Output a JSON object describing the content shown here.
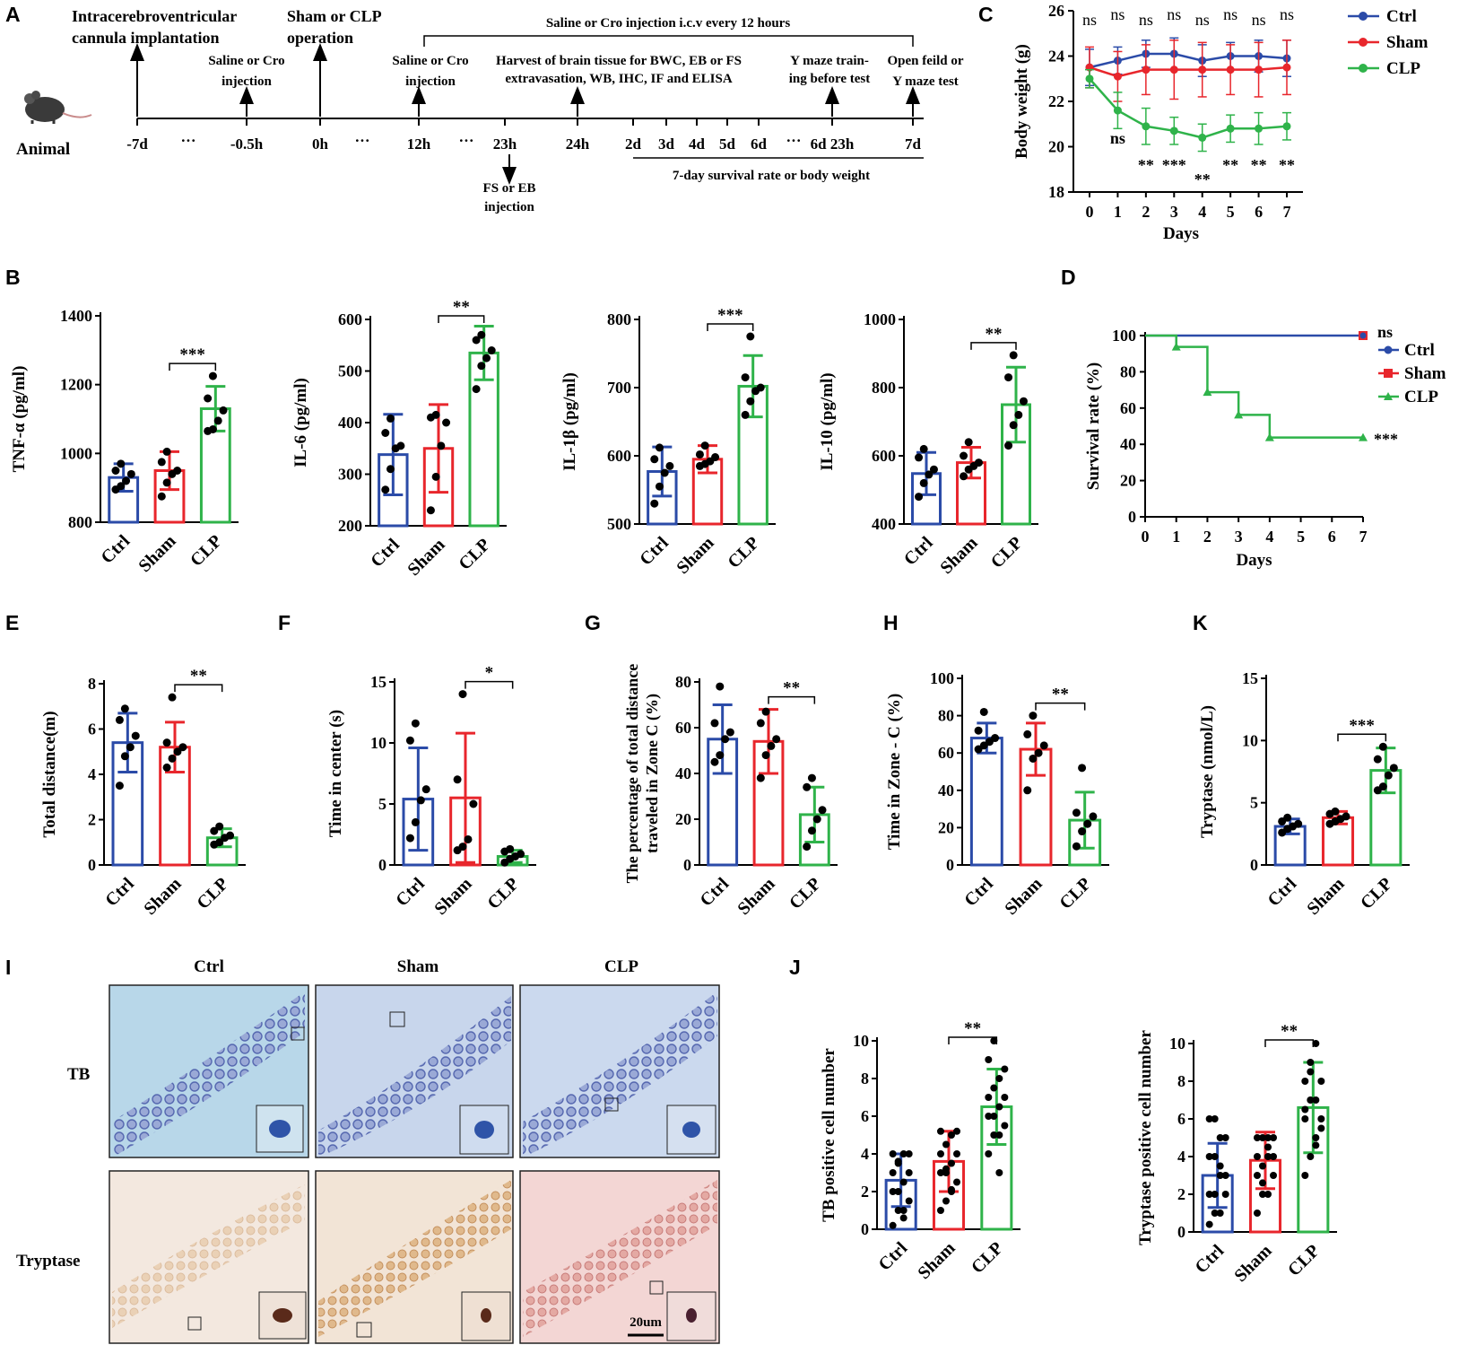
{
  "colors": {
    "ctrl": "#2b4ba8",
    "sham": "#e8262c",
    "clp": "#2fb34a",
    "black": "#000000"
  },
  "timeline": {
    "panel_label": "A",
    "animal_label": "Animal",
    "above": [
      {
        "id": "cannula",
        "text": [
          "Intracerebroventricular",
          "cannula implantation"
        ]
      },
      {
        "id": "saline1",
        "text": [
          "Saline or Cro",
          "injection"
        ]
      },
      {
        "id": "sham",
        "text": [
          "Sham or CLP",
          "operation"
        ]
      },
      {
        "id": "saline2",
        "text": [
          "Saline or Cro",
          "injection"
        ]
      },
      {
        "id": "harvest",
        "text": [
          "Harvest of brain tissue for BWC, EB or FS",
          "extravasation, WB, IHC, IF and ELISA"
        ]
      },
      {
        "id": "ymaze",
        "text": [
          "Y maze train-",
          "ing before test"
        ]
      },
      {
        "id": "openfield",
        "text": [
          "Open feild or",
          "Y maze test"
        ]
      }
    ],
    "bracket_text": "Saline or Cro injection i.c.v every 12 hours",
    "ticks": [
      "-7d",
      "-0.5h",
      "0h",
      "12h",
      "23h",
      "24h",
      "2d",
      "3d",
      "4d",
      "5d",
      "6d",
      "6d 23h",
      "7d"
    ],
    "dots": [
      "···",
      "···",
      "···",
      "···"
    ],
    "below_arrow_text": [
      "FS or EB",
      "injection"
    ],
    "bottom_bracket_text": "7-day survival rate or body weight"
  },
  "legend": {
    "ctrl": "Ctrl",
    "sham": "Sham",
    "clp": "CLP"
  },
  "chart_data": [
    {
      "panel": "C",
      "type": "line",
      "ylabel": "Body weight (g)",
      "xlabel": "Days",
      "x": [
        0,
        1,
        2,
        3,
        4,
        5,
        6,
        7
      ],
      "ylim": [
        18,
        26
      ],
      "yticks": [
        18,
        20,
        22,
        24,
        26
      ],
      "series": [
        {
          "name": "Ctrl",
          "values": [
            23.5,
            23.8,
            24.1,
            24.1,
            23.8,
            24.0,
            24.0,
            23.9
          ],
          "err": [
            0.8,
            0.6,
            0.6,
            0.7,
            0.7,
            0.6,
            0.7,
            0.8
          ]
        },
        {
          "name": "Sham",
          "values": [
            23.5,
            23.1,
            23.4,
            23.4,
            23.4,
            23.4,
            23.4,
            23.5
          ],
          "err": [
            0.9,
            1.1,
            1.1,
            1.3,
            1.2,
            1.1,
            1.2,
            1.2
          ]
        },
        {
          "name": "CLP",
          "values": [
            23.0,
            21.6,
            20.9,
            20.7,
            20.4,
            20.8,
            20.8,
            20.9
          ],
          "err": [
            0.4,
            0.8,
            0.8,
            0.6,
            0.6,
            0.6,
            0.7,
            0.6
          ]
        }
      ],
      "annotations_top": [
        "ns",
        "ns",
        "ns",
        "ns",
        "ns",
        "ns",
        "ns",
        "ns"
      ],
      "annotations_bottom": [
        "",
        "ns",
        "**",
        "***",
        "**",
        "**",
        "**",
        "**"
      ]
    },
    {
      "panel": "D",
      "type": "line",
      "ylabel": "Survival rate (%)",
      "xlabel": "Days",
      "x": [
        0,
        1,
        2,
        3,
        4,
        5,
        6,
        7
      ],
      "ylim": [
        0,
        100
      ],
      "yticks": [
        0,
        20,
        40,
        60,
        80,
        100
      ],
      "series": [
        {
          "name": "Ctrl",
          "values": [
            100,
            100,
            100,
            100,
            100,
            100,
            100,
            100
          ]
        },
        {
          "name": "Sham",
          "values": [
            100,
            100,
            100,
            100,
            100,
            100,
            100,
            100
          ]
        },
        {
          "name": "CLP",
          "steps": [
            [
              0,
              100
            ],
            [
              1,
              93.75
            ],
            [
              2,
              68.75
            ],
            [
              3,
              56.25
            ],
            [
              4,
              43.75
            ],
            [
              7,
              43.75
            ]
          ]
        }
      ],
      "annotations": [
        "ns",
        "***"
      ]
    },
    {
      "panel": "B1",
      "type": "bar",
      "ylabel": "TNF-α (pg/ml)",
      "categories": [
        "Ctrl",
        "Sham",
        "CLP"
      ],
      "ylim": [
        800,
        1400
      ],
      "yticks": [
        800,
        1000,
        1200,
        1400
      ],
      "values": [
        930,
        950,
        1130
      ],
      "err": [
        40,
        55,
        65
      ],
      "points": [
        [
          895,
          905,
          920,
          940,
          950,
          970
        ],
        [
          875,
          915,
          940,
          950,
          975,
          1005
        ],
        [
          1065,
          1070,
          1095,
          1125,
          1160,
          1225
        ]
      ],
      "sig": "***"
    },
    {
      "panel": "B2",
      "type": "bar",
      "ylabel": "IL-6 (pg/ml)",
      "categories": [
        "Ctrl",
        "Sham",
        "CLP"
      ],
      "ylim": [
        200,
        600
      ],
      "yticks": [
        200,
        300,
        400,
        500,
        600
      ],
      "values": [
        338,
        350,
        535
      ],
      "err": [
        78,
        85,
        52
      ],
      "points": [
        [
          270,
          310,
          350,
          355,
          380,
          408
        ],
        [
          230,
          295,
          355,
          400,
          410,
          415
        ],
        [
          465,
          510,
          525,
          540,
          560,
          570
        ]
      ],
      "sig": "**"
    },
    {
      "panel": "B3",
      "type": "bar",
      "ylabel": "IL-1β (pg/ml)",
      "categories": [
        "Ctrl",
        "Sham",
        "CLP"
      ],
      "ylim": [
        500,
        800
      ],
      "yticks": [
        500,
        600,
        700,
        800
      ],
      "values": [
        577,
        595,
        702
      ],
      "err": [
        36,
        20,
        45
      ],
      "points": [
        [
          530,
          555,
          575,
          585,
          595,
          612
        ],
        [
          585,
          588,
          592,
          598,
          602,
          615
        ],
        [
          660,
          680,
          695,
          700,
          715,
          775
        ]
      ],
      "sig": "***"
    },
    {
      "panel": "B4",
      "type": "bar",
      "ylabel": "IL-10 (pg/ml)",
      "categories": [
        "Ctrl",
        "Sham",
        "CLP"
      ],
      "ylim": [
        400,
        1000
      ],
      "yticks": [
        400,
        600,
        800,
        1000
      ],
      "values": [
        548,
        580,
        750
      ],
      "err": [
        62,
        45,
        110
      ],
      "points": [
        [
          480,
          520,
          545,
          560,
          595,
          620
        ],
        [
          540,
          560,
          570,
          580,
          600,
          640
        ],
        [
          630,
          690,
          720,
          760,
          830,
          895
        ]
      ],
      "sig": "**"
    },
    {
      "panel": "E",
      "type": "bar",
      "ylabel": "Total distance(m)",
      "categories": [
        "Ctrl",
        "Sham",
        "CLP"
      ],
      "ylim": [
        0,
        8
      ],
      "yticks": [
        0,
        2,
        4,
        6,
        8
      ],
      "values": [
        5.4,
        5.2,
        1.2
      ],
      "err": [
        1.3,
        1.1,
        0.4
      ],
      "points": [
        [
          3.5,
          4.8,
          5.2,
          5.7,
          6.4,
          6.9
        ],
        [
          4.3,
          4.7,
          5.0,
          5.2,
          5.4,
          7.4
        ],
        [
          0.9,
          1.0,
          1.2,
          1.3,
          1.5,
          1.7
        ]
      ],
      "sig": "**"
    },
    {
      "panel": "F",
      "type": "bar",
      "ylabel": "Time in center (s)",
      "categories": [
        "Ctrl",
        "Sham",
        "CLP"
      ],
      "ylim": [
        0,
        15
      ],
      "yticks": [
        0,
        5,
        10,
        15
      ],
      "values": [
        5.4,
        5.5,
        0.7
      ],
      "err": [
        4.2,
        5.3,
        0.5
      ],
      "points": [
        [
          2.2,
          3.5,
          5.3,
          6.2,
          10.2,
          11.6
        ],
        [
          1.2,
          1.5,
          2.1,
          5.0,
          7.0,
          14.0
        ],
        [
          0.2,
          0.5,
          0.7,
          0.9,
          1.1,
          1.3
        ]
      ],
      "sig": "*"
    },
    {
      "panel": "G",
      "type": "bar",
      "ylabel": [
        "The percentage of total distance",
        "traveled in Zone C (%)"
      ],
      "categories": [
        "Ctrl",
        "Sham",
        "CLP"
      ],
      "ylim": [
        0,
        80
      ],
      "yticks": [
        0,
        20,
        40,
        60,
        80
      ],
      "values": [
        55,
        54,
        22
      ],
      "err": [
        15,
        14,
        12
      ],
      "points": [
        [
          45,
          48,
          55,
          58,
          62,
          78
        ],
        [
          38,
          48,
          52,
          55,
          62,
          67
        ],
        [
          8,
          15,
          20,
          24,
          34,
          38
        ]
      ],
      "sig": "**"
    },
    {
      "panel": "H",
      "type": "bar",
      "ylabel": "Time in Zone - C (%)",
      "categories": [
        "Ctrl",
        "Sham",
        "CLP"
      ],
      "ylim": [
        0,
        100
      ],
      "yticks": [
        0,
        20,
        40,
        60,
        80,
        100
      ],
      "values": [
        68,
        62,
        24
      ],
      "err": [
        8,
        14,
        15
      ],
      "points": [
        [
          62,
          64,
          66,
          68,
          72,
          82
        ],
        [
          40,
          57,
          60,
          64,
          70,
          80
        ],
        [
          10,
          18,
          22,
          26,
          28,
          52
        ]
      ],
      "sig": "**"
    },
    {
      "panel": "K",
      "type": "bar",
      "ylabel": "Tryptase (nmol/L)",
      "categories": [
        "Ctrl",
        "Sham",
        "CLP"
      ],
      "ylim": [
        0,
        15
      ],
      "yticks": [
        0,
        5,
        10,
        15
      ],
      "values": [
        3.1,
        3.8,
        7.6
      ],
      "err": [
        0.6,
        0.5,
        1.8
      ],
      "points": [
        [
          2.6,
          2.9,
          3.1,
          3.3,
          3.5,
          3.8
        ],
        [
          3.3,
          3.5,
          3.7,
          3.9,
          4.1,
          4.3
        ],
        [
          6.0,
          6.3,
          7.2,
          7.8,
          8.5,
          9.5
        ]
      ],
      "sig": "***"
    },
    {
      "panel": "J1",
      "type": "bar",
      "ylabel": "TB positive cell number",
      "categories": [
        "Ctrl",
        "Sham",
        "CLP"
      ],
      "ylim": [
        0,
        10
      ],
      "yticks": [
        0,
        2,
        4,
        6,
        8,
        10
      ],
      "values": [
        2.6,
        3.6,
        6.5
      ],
      "err": [
        1.4,
        1.6,
        2.0
      ],
      "points": [
        [
          0.2,
          1,
          1,
          1.5,
          2,
          2,
          2.5,
          3,
          3,
          3.5,
          4,
          4,
          4,
          3.6,
          0.6
        ],
        [
          1,
          1.5,
          2,
          2.5,
          3,
          3,
          3.5,
          4,
          4,
          4.5,
          5,
          5.2,
          5.2,
          3.2,
          2.1
        ],
        [
          4,
          5,
          5,
          5.5,
          6,
          6,
          6.5,
          7,
          7,
          7.5,
          8,
          8.5,
          9,
          10,
          3
        ]
      ],
      "sig": "**"
    },
    {
      "panel": "J2",
      "type": "bar",
      "ylabel": "Tryptase positive cell number",
      "categories": [
        "Ctrl",
        "Sham",
        "CLP"
      ],
      "ylim": [
        0,
        10
      ],
      "yticks": [
        0,
        2,
        4,
        6,
        8,
        10
      ],
      "values": [
        3.0,
        3.8,
        6.6
      ],
      "err": [
        1.7,
        1.5,
        2.4
      ],
      "points": [
        [
          0.4,
          1,
          1,
          2,
          2,
          2,
          3,
          3,
          4,
          4,
          5,
          5,
          6,
          6,
          3.5
        ],
        [
          1,
          2,
          2,
          3,
          3,
          3.5,
          4,
          4,
          4,
          5,
          5,
          5,
          5,
          2.6,
          4.5
        ],
        [
          3,
          4,
          5,
          6,
          6,
          7,
          7,
          8,
          8,
          9,
          10,
          5.5,
          6.5,
          8.5,
          4.6
        ]
      ],
      "sig": "**"
    }
  ],
  "histology": {
    "col_titles": [
      "Ctrl",
      "Sham",
      "CLP"
    ],
    "row_labels": [
      "TB",
      "Tryptase"
    ],
    "scale_bar": "20um"
  },
  "panel_labels": {
    "B": "B",
    "C": "C",
    "D": "D",
    "E": "E",
    "F": "F",
    "G": "G",
    "H": "H",
    "K": "K",
    "I": "I",
    "J": "J"
  }
}
